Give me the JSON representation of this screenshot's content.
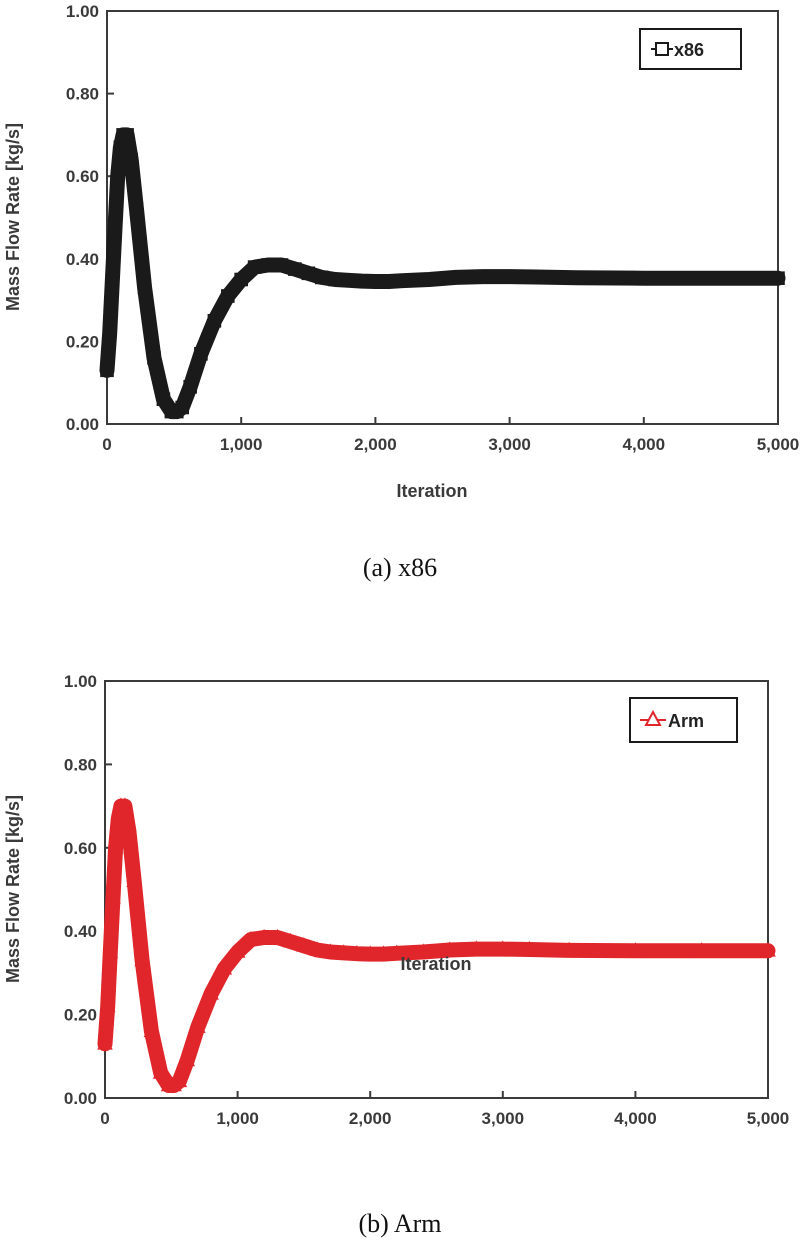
{
  "chart_data": [
    {
      "type": "line",
      "caption": "(a)  x86",
      "xlabel": "Iteration",
      "ylabel": "Mass Flow Rate [kg/s]",
      "xlim": [
        0,
        5000
      ],
      "ylim": [
        0,
        1.0
      ],
      "xticks": [
        "0",
        "1,000",
        "2,000",
        "3,000",
        "4,000",
        "5,000"
      ],
      "yticks": [
        "0.00",
        "0.20",
        "0.40",
        "0.60",
        "0.80",
        "1.00"
      ],
      "grid": false,
      "legend_position": "top-right",
      "series": [
        {
          "name": "x86",
          "color": "#1a1a1a",
          "marker": "square",
          "x": [
            0,
            20,
            40,
            60,
            80,
            100,
            120,
            150,
            180,
            220,
            280,
            350,
            420,
            480,
            520,
            560,
            620,
            700,
            800,
            900,
            1000,
            1100,
            1200,
            1300,
            1400,
            1500,
            1600,
            1700,
            1800,
            1900,
            2000,
            2100,
            2200,
            2400,
            2600,
            2800,
            3000,
            3200,
            3500,
            4000,
            4500,
            5000
          ],
          "y": [
            0.13,
            0.22,
            0.35,
            0.48,
            0.6,
            0.67,
            0.7,
            0.7,
            0.64,
            0.52,
            0.33,
            0.16,
            0.06,
            0.03,
            0.03,
            0.04,
            0.09,
            0.17,
            0.25,
            0.31,
            0.35,
            0.38,
            0.385,
            0.385,
            0.375,
            0.365,
            0.355,
            0.35,
            0.348,
            0.346,
            0.345,
            0.345,
            0.347,
            0.35,
            0.355,
            0.357,
            0.357,
            0.356,
            0.354,
            0.353,
            0.353,
            0.353
          ]
        }
      ]
    },
    {
      "type": "line",
      "caption": "(b)  Arm",
      "xlabel": "Iteration",
      "ylabel": "Mass Flow Rate [kg/s]",
      "xlim": [
        0,
        5000
      ],
      "ylim": [
        0,
        1.0
      ],
      "xticks": [
        "0",
        "1,000",
        "2,000",
        "3,000",
        "4,000",
        "5,000"
      ],
      "yticks": [
        "0.00",
        "0.20",
        "0.40",
        "0.60",
        "0.80",
        "1.00"
      ],
      "grid": false,
      "legend_position": "top-right",
      "series": [
        {
          "name": "Arm",
          "color": "#e0262b",
          "marker": "triangle",
          "x": [
            0,
            20,
            40,
            60,
            80,
            100,
            120,
            150,
            180,
            220,
            280,
            350,
            420,
            480,
            520,
            560,
            620,
            700,
            800,
            900,
            1000,
            1100,
            1200,
            1300,
            1400,
            1500,
            1600,
            1700,
            1800,
            1900,
            2000,
            2100,
            2200,
            2400,
            2600,
            2800,
            3000,
            3200,
            3500,
            4000,
            4500,
            5000
          ],
          "y": [
            0.13,
            0.22,
            0.35,
            0.48,
            0.6,
            0.67,
            0.7,
            0.7,
            0.64,
            0.52,
            0.33,
            0.16,
            0.06,
            0.03,
            0.03,
            0.04,
            0.09,
            0.17,
            0.25,
            0.31,
            0.35,
            0.38,
            0.385,
            0.385,
            0.375,
            0.365,
            0.355,
            0.35,
            0.348,
            0.346,
            0.345,
            0.345,
            0.347,
            0.35,
            0.355,
            0.357,
            0.357,
            0.356,
            0.354,
            0.353,
            0.353,
            0.353
          ]
        }
      ]
    }
  ]
}
